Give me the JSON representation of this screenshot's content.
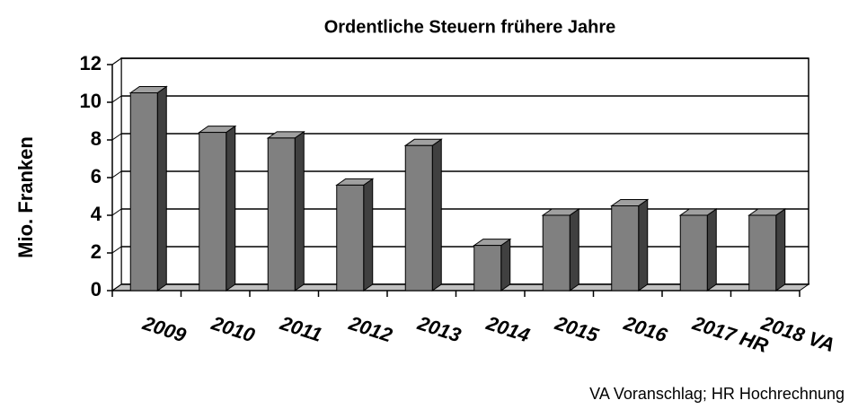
{
  "chart_data": {
    "type": "bar3d",
    "title": "Ordentliche Steuern frühere Jahre",
    "y_label": "Mio. Franken",
    "categories": [
      "2009",
      "2010",
      "2011",
      "2012",
      "2013",
      "2014",
      "2015",
      "2016",
      "2017 HR",
      "2018 VA"
    ],
    "values": [
      10.5,
      8.4,
      8.1,
      5.6,
      7.7,
      2.4,
      4.0,
      4.5,
      4.0,
      4.0
    ],
    "color": "#808080",
    "ylim": [
      0,
      12
    ],
    "yticks": [
      0,
      2,
      4,
      6,
      8,
      10,
      12
    ],
    "grid": true,
    "note": "VA Voranschlag; HR Hochrechnung"
  }
}
